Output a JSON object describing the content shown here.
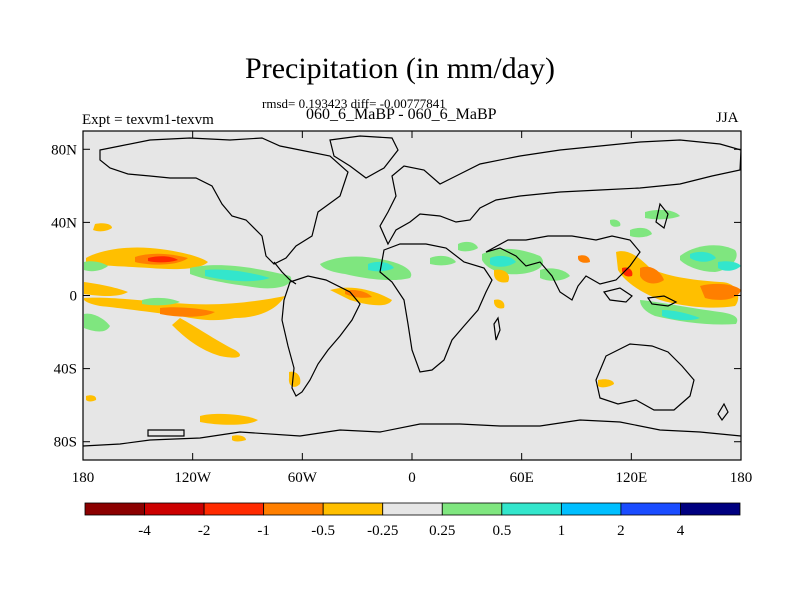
{
  "title": "Precipitation (in mm/day)",
  "stats_line": "rmsd= 0.193423 diff= -0.00777841",
  "subtitle": "060_6_MaBP - 060_6_MaBP",
  "experiment": "Expt = texvm1-texvm",
  "season": "JJA",
  "map": {
    "projection": "cylindrical-equidistant",
    "lon_range": [
      -180,
      180
    ],
    "lat_range": [
      -90,
      90
    ],
    "x_ticks": [
      {
        "label": "180",
        "lon": -180
      },
      {
        "label": "120W",
        "lon": -120
      },
      {
        "label": "60W",
        "lon": -60
      },
      {
        "label": "0",
        "lon": 0
      },
      {
        "label": "60E",
        "lon": 60
      },
      {
        "label": "120E",
        "lon": 120
      },
      {
        "label": "180",
        "lon": 180
      }
    ],
    "y_ticks": [
      {
        "label": "80N",
        "lat": 80
      },
      {
        "label": "40N",
        "lat": 40
      },
      {
        "label": "0",
        "lat": 0
      },
      {
        "label": "40S",
        "lat": -40
      },
      {
        "label": "80S",
        "lat": -80
      }
    ],
    "background_color": "#e6e6e6",
    "coast_color": "#000000"
  },
  "colorbar": {
    "colors": [
      "#8b0000",
      "#cc0000",
      "#ff2a00",
      "#ff7f00",
      "#ffbf00",
      "#e6e6e6",
      "#7fe67f",
      "#33e6cc",
      "#00bfff",
      "#1a4cff",
      "#000080"
    ],
    "labels": [
      "-4",
      "-2",
      "-1",
      "-0.5",
      "-0.25",
      "0.25",
      "0.5",
      "1",
      "2",
      "4"
    ]
  }
}
